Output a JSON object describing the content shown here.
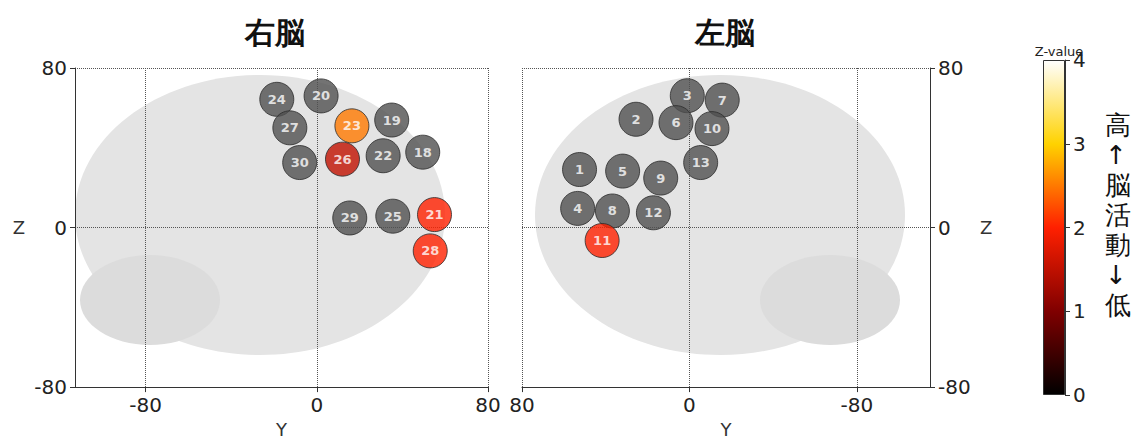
{
  "chart_data": [
    {
      "type": "scatter",
      "title": "右脳",
      "xlabel": "Y",
      "ylabel": "Z",
      "xlim": [
        -113,
        80
      ],
      "ylim": [
        -80,
        80
      ],
      "xticks": [
        -80,
        0,
        80
      ],
      "yticks": [
        -80,
        0,
        80
      ],
      "grid": true,
      "points": [
        {
          "channel": 18,
          "x": 49.5,
          "y": 37.8,
          "z": null
        },
        {
          "channel": 19,
          "x": 35,
          "y": 53.9,
          "z": null
        },
        {
          "channel": 20,
          "x": 2,
          "y": 66,
          "z": null
        },
        {
          "channel": 21,
          "x": 55,
          "y": 6.5,
          "z": 2.0
        },
        {
          "channel": 22,
          "x": 31,
          "y": 36,
          "z": null
        },
        {
          "channel": 23,
          "x": 16.4,
          "y": 51,
          "z": 2.5
        },
        {
          "channel": 24,
          "x": -18.7,
          "y": 64.3,
          "z": null
        },
        {
          "channel": 25,
          "x": 35.5,
          "y": 5.7,
          "z": null
        },
        {
          "channel": 26,
          "x": 12,
          "y": 34.3,
          "z": 1.5
        },
        {
          "channel": 27,
          "x": -12.6,
          "y": 50,
          "z": null
        },
        {
          "channel": 28,
          "x": 53,
          "y": -11.7,
          "z": 2.0
        },
        {
          "channel": 29,
          "x": 15.4,
          "y": 4.8,
          "z": null
        },
        {
          "channel": 30,
          "x": -8,
          "y": 32.6,
          "z": null
        }
      ]
    },
    {
      "type": "scatter",
      "title": "左脳",
      "xlabel": "Y",
      "ylabel": "Z",
      "xlim": [
        80,
        -115
      ],
      "ylim": [
        -80,
        80
      ],
      "xticks": [
        -80,
        0,
        80
      ],
      "yticks": [
        -80,
        0,
        80
      ],
      "grid": true,
      "points": [
        {
          "channel": 1,
          "x": 52.5,
          "y": 29.1,
          "z": null
        },
        {
          "channel": 2,
          "x": 25.5,
          "y": 54.3,
          "z": null
        },
        {
          "channel": 3,
          "x": 1,
          "y": 66.1,
          "z": null
        },
        {
          "channel": 4,
          "x": 53.4,
          "y": 9.6,
          "z": null
        },
        {
          "channel": 5,
          "x": 31.9,
          "y": 28.3,
          "z": null
        },
        {
          "channel": 6,
          "x": 6.4,
          "y": 52.6,
          "z": null
        },
        {
          "channel": 7,
          "x": -15.7,
          "y": 63.9,
          "z": null
        },
        {
          "channel": 8,
          "x": 36.8,
          "y": 8.3,
          "z": null
        },
        {
          "channel": 9,
          "x": 13.7,
          "y": 24.8,
          "z": null
        },
        {
          "channel": 10,
          "x": -10.8,
          "y": 49.6,
          "z": null
        },
        {
          "channel": 11,
          "x": 41.7,
          "y": -6.5,
          "z": 2.0
        },
        {
          "channel": 12,
          "x": 17.2,
          "y": 7.4,
          "z": null
        },
        {
          "channel": 13,
          "x": -5.4,
          "y": 32.6,
          "z": null
        }
      ]
    }
  ],
  "colorbar": {
    "title": "Z-value",
    "range": [
      0,
      4
    ],
    "ticks": [
      0,
      1,
      2,
      3,
      4
    ],
    "side_label": "高↑脳活動↓低"
  }
}
